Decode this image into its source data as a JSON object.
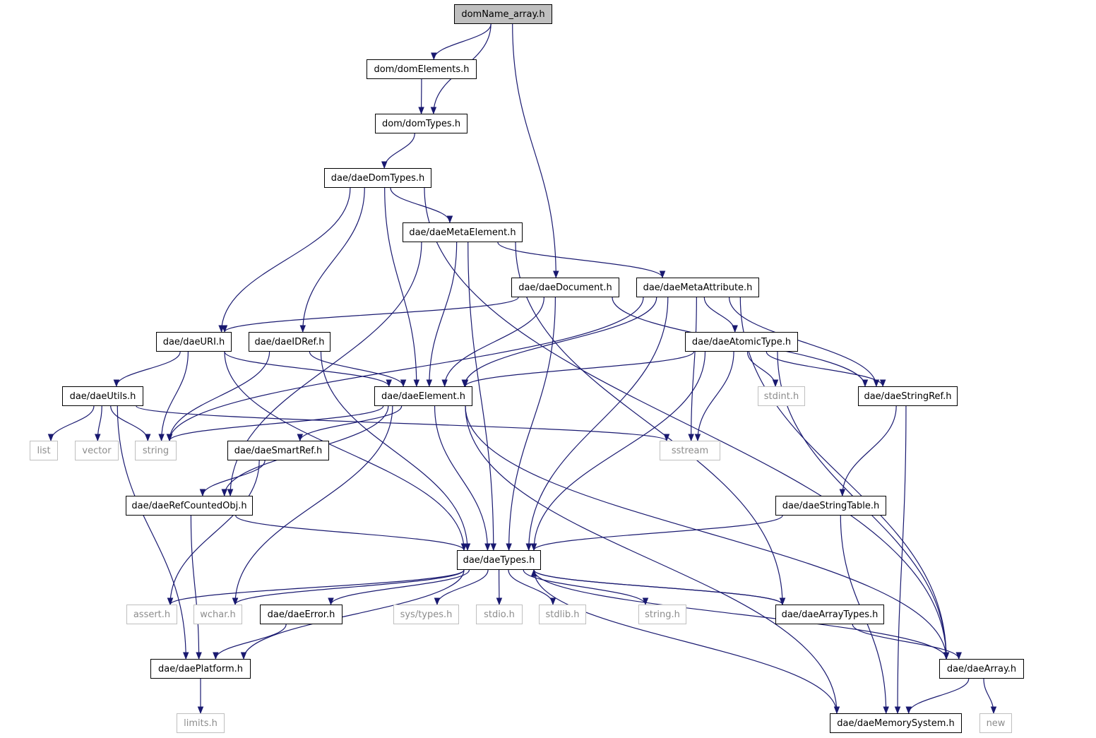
{
  "colors": {
    "edge": "#191970",
    "root_fill": "#bfbfbf",
    "system_border": "#bfbfbf"
  },
  "nodes": [
    {
      "id": "root",
      "label": "domName_array.h",
      "kind": "root"
    },
    {
      "id": "domElements",
      "label": "dom/domElements.h"
    },
    {
      "id": "domTypes",
      "label": "dom/domTypes.h"
    },
    {
      "id": "daeDomTypes",
      "label": "dae/daeDomTypes.h"
    },
    {
      "id": "daeMetaElement",
      "label": "dae/daeMetaElement.h"
    },
    {
      "id": "daeDocument",
      "label": "dae/daeDocument.h"
    },
    {
      "id": "daeMetaAttribute",
      "label": "dae/daeMetaAttribute.h"
    },
    {
      "id": "daeURI",
      "label": "dae/daeURI.h"
    },
    {
      "id": "daeIDRef",
      "label": "dae/daeIDRef.h"
    },
    {
      "id": "daeAtomicType",
      "label": "dae/daeAtomicType.h"
    },
    {
      "id": "daeUtils",
      "label": "dae/daeUtils.h"
    },
    {
      "id": "daeElement",
      "label": "dae/daeElement.h"
    },
    {
      "id": "stdint",
      "label": "stdint.h",
      "kind": "system"
    },
    {
      "id": "daeStringRef",
      "label": "dae/daeStringRef.h"
    },
    {
      "id": "list",
      "label": "list",
      "kind": "system"
    },
    {
      "id": "vector",
      "label": "vector",
      "kind": "system"
    },
    {
      "id": "string",
      "label": "string",
      "kind": "system"
    },
    {
      "id": "sstream",
      "label": "sstream",
      "kind": "system"
    },
    {
      "id": "daeSmartRef",
      "label": "dae/daeSmartRef.h"
    },
    {
      "id": "daeRefCountedObj",
      "label": "dae/daeRefCountedObj.h"
    },
    {
      "id": "daeStringTable",
      "label": "dae/daeStringTable.h"
    },
    {
      "id": "daeTypes",
      "label": "dae/daeTypes.h"
    },
    {
      "id": "assert",
      "label": "assert.h",
      "kind": "system"
    },
    {
      "id": "wchar",
      "label": "wchar.h",
      "kind": "system"
    },
    {
      "id": "daeError",
      "label": "dae/daeError.h"
    },
    {
      "id": "systypes",
      "label": "sys/types.h",
      "kind": "system"
    },
    {
      "id": "stdio",
      "label": "stdio.h",
      "kind": "system"
    },
    {
      "id": "stdlib",
      "label": "stdlib.h",
      "kind": "system"
    },
    {
      "id": "stringh",
      "label": "string.h",
      "kind": "system"
    },
    {
      "id": "daeArrayTypes",
      "label": "dae/daeArrayTypes.h"
    },
    {
      "id": "daePlatform",
      "label": "dae/daePlatform.h"
    },
    {
      "id": "daeArray",
      "label": "dae/daeArray.h"
    },
    {
      "id": "limits",
      "label": "limits.h",
      "kind": "system"
    },
    {
      "id": "daeMemorySystem",
      "label": "dae/daeMemorySystem.h"
    },
    {
      "id": "new",
      "label": "new",
      "kind": "system"
    }
  ],
  "edges": [
    [
      "root",
      "domElements"
    ],
    [
      "root",
      "domTypes"
    ],
    [
      "root",
      "daeDocument"
    ],
    [
      "domElements",
      "domTypes"
    ],
    [
      "domTypes",
      "daeDomTypes"
    ],
    [
      "daeDomTypes",
      "daeMetaElement"
    ],
    [
      "daeDomTypes",
      "daeURI"
    ],
    [
      "daeDomTypes",
      "daeIDRef"
    ],
    [
      "daeDomTypes",
      "daeElement"
    ],
    [
      "daeDomTypes",
      "daeArray"
    ],
    [
      "daeMetaElement",
      "daeMetaAttribute"
    ],
    [
      "daeMetaElement",
      "daeElement"
    ],
    [
      "daeMetaElement",
      "daeTypes"
    ],
    [
      "daeMetaElement",
      "daeRefCountedObj"
    ],
    [
      "daeMetaElement",
      "daeArrayTypes"
    ],
    [
      "daeDocument",
      "daeURI"
    ],
    [
      "daeDocument",
      "daeElement"
    ],
    [
      "daeDocument",
      "daeTypes"
    ],
    [
      "daeDocument",
      "daeStringRef"
    ],
    [
      "daeMetaAttribute",
      "daeAtomicType"
    ],
    [
      "daeMetaAttribute",
      "daeStringRef"
    ],
    [
      "daeMetaAttribute",
      "daeElement"
    ],
    [
      "daeMetaAttribute",
      "daeTypes"
    ],
    [
      "daeMetaAttribute",
      "string"
    ],
    [
      "daeMetaAttribute",
      "sstream"
    ],
    [
      "daeMetaAttribute",
      "daeArray"
    ],
    [
      "daeURI",
      "daeUtils"
    ],
    [
      "daeURI",
      "string"
    ],
    [
      "daeURI",
      "daeElement"
    ],
    [
      "daeURI",
      "daeTypes"
    ],
    [
      "daeIDRef",
      "string"
    ],
    [
      "daeIDRef",
      "daeElement"
    ],
    [
      "daeIDRef",
      "daeTypes"
    ],
    [
      "daeAtomicType",
      "daeElement"
    ],
    [
      "daeAtomicType",
      "stdint"
    ],
    [
      "daeAtomicType",
      "daeStringRef"
    ],
    [
      "daeAtomicType",
      "sstream"
    ],
    [
      "daeAtomicType",
      "daeTypes"
    ],
    [
      "daeAtomicType",
      "daeArray"
    ],
    [
      "daeUtils",
      "list"
    ],
    [
      "daeUtils",
      "vector"
    ],
    [
      "daeUtils",
      "string"
    ],
    [
      "daeUtils",
      "sstream"
    ],
    [
      "daeUtils",
      "daePlatform"
    ],
    [
      "daeElement",
      "string"
    ],
    [
      "daeElement",
      "daeRefCountedObj"
    ],
    [
      "daeElement",
      "daeSmartRef"
    ],
    [
      "daeElement",
      "daeTypes"
    ],
    [
      "daeElement",
      "wchar"
    ],
    [
      "daeElement",
      "daeMemorySystem"
    ],
    [
      "daeElement",
      "daeArray"
    ],
    [
      "daeStringRef",
      "daeStringTable"
    ],
    [
      "daeStringRef",
      "daeMemorySystem"
    ],
    [
      "daeSmartRef",
      "daeRefCountedObj"
    ],
    [
      "daeSmartRef",
      "assert"
    ],
    [
      "daeRefCountedObj",
      "daeTypes"
    ],
    [
      "daeRefCountedObj",
      "daePlatform"
    ],
    [
      "daeStringTable",
      "daeTypes"
    ],
    [
      "daeStringTable",
      "daeMemorySystem"
    ],
    [
      "daeTypes",
      "assert"
    ],
    [
      "daeTypes",
      "wchar"
    ],
    [
      "daeTypes",
      "daeError"
    ],
    [
      "daeTypes",
      "systypes"
    ],
    [
      "daeTypes",
      "stdio"
    ],
    [
      "daeTypes",
      "stdlib"
    ],
    [
      "daeTypes",
      "stringh"
    ],
    [
      "daeTypes",
      "daeArrayTypes"
    ],
    [
      "daeTypes",
      "daePlatform"
    ],
    [
      "daeTypes",
      "daeArray"
    ],
    [
      "daeArrayTypes",
      "daeTypes"
    ],
    [
      "daeArrayTypes",
      "daeArray"
    ],
    [
      "daeError",
      "daePlatform"
    ],
    [
      "daePlatform",
      "limits"
    ],
    [
      "daeArray",
      "daeMemorySystem"
    ],
    [
      "daeArray",
      "new"
    ],
    [
      "daeMemorySystem",
      "daeTypes"
    ]
  ]
}
